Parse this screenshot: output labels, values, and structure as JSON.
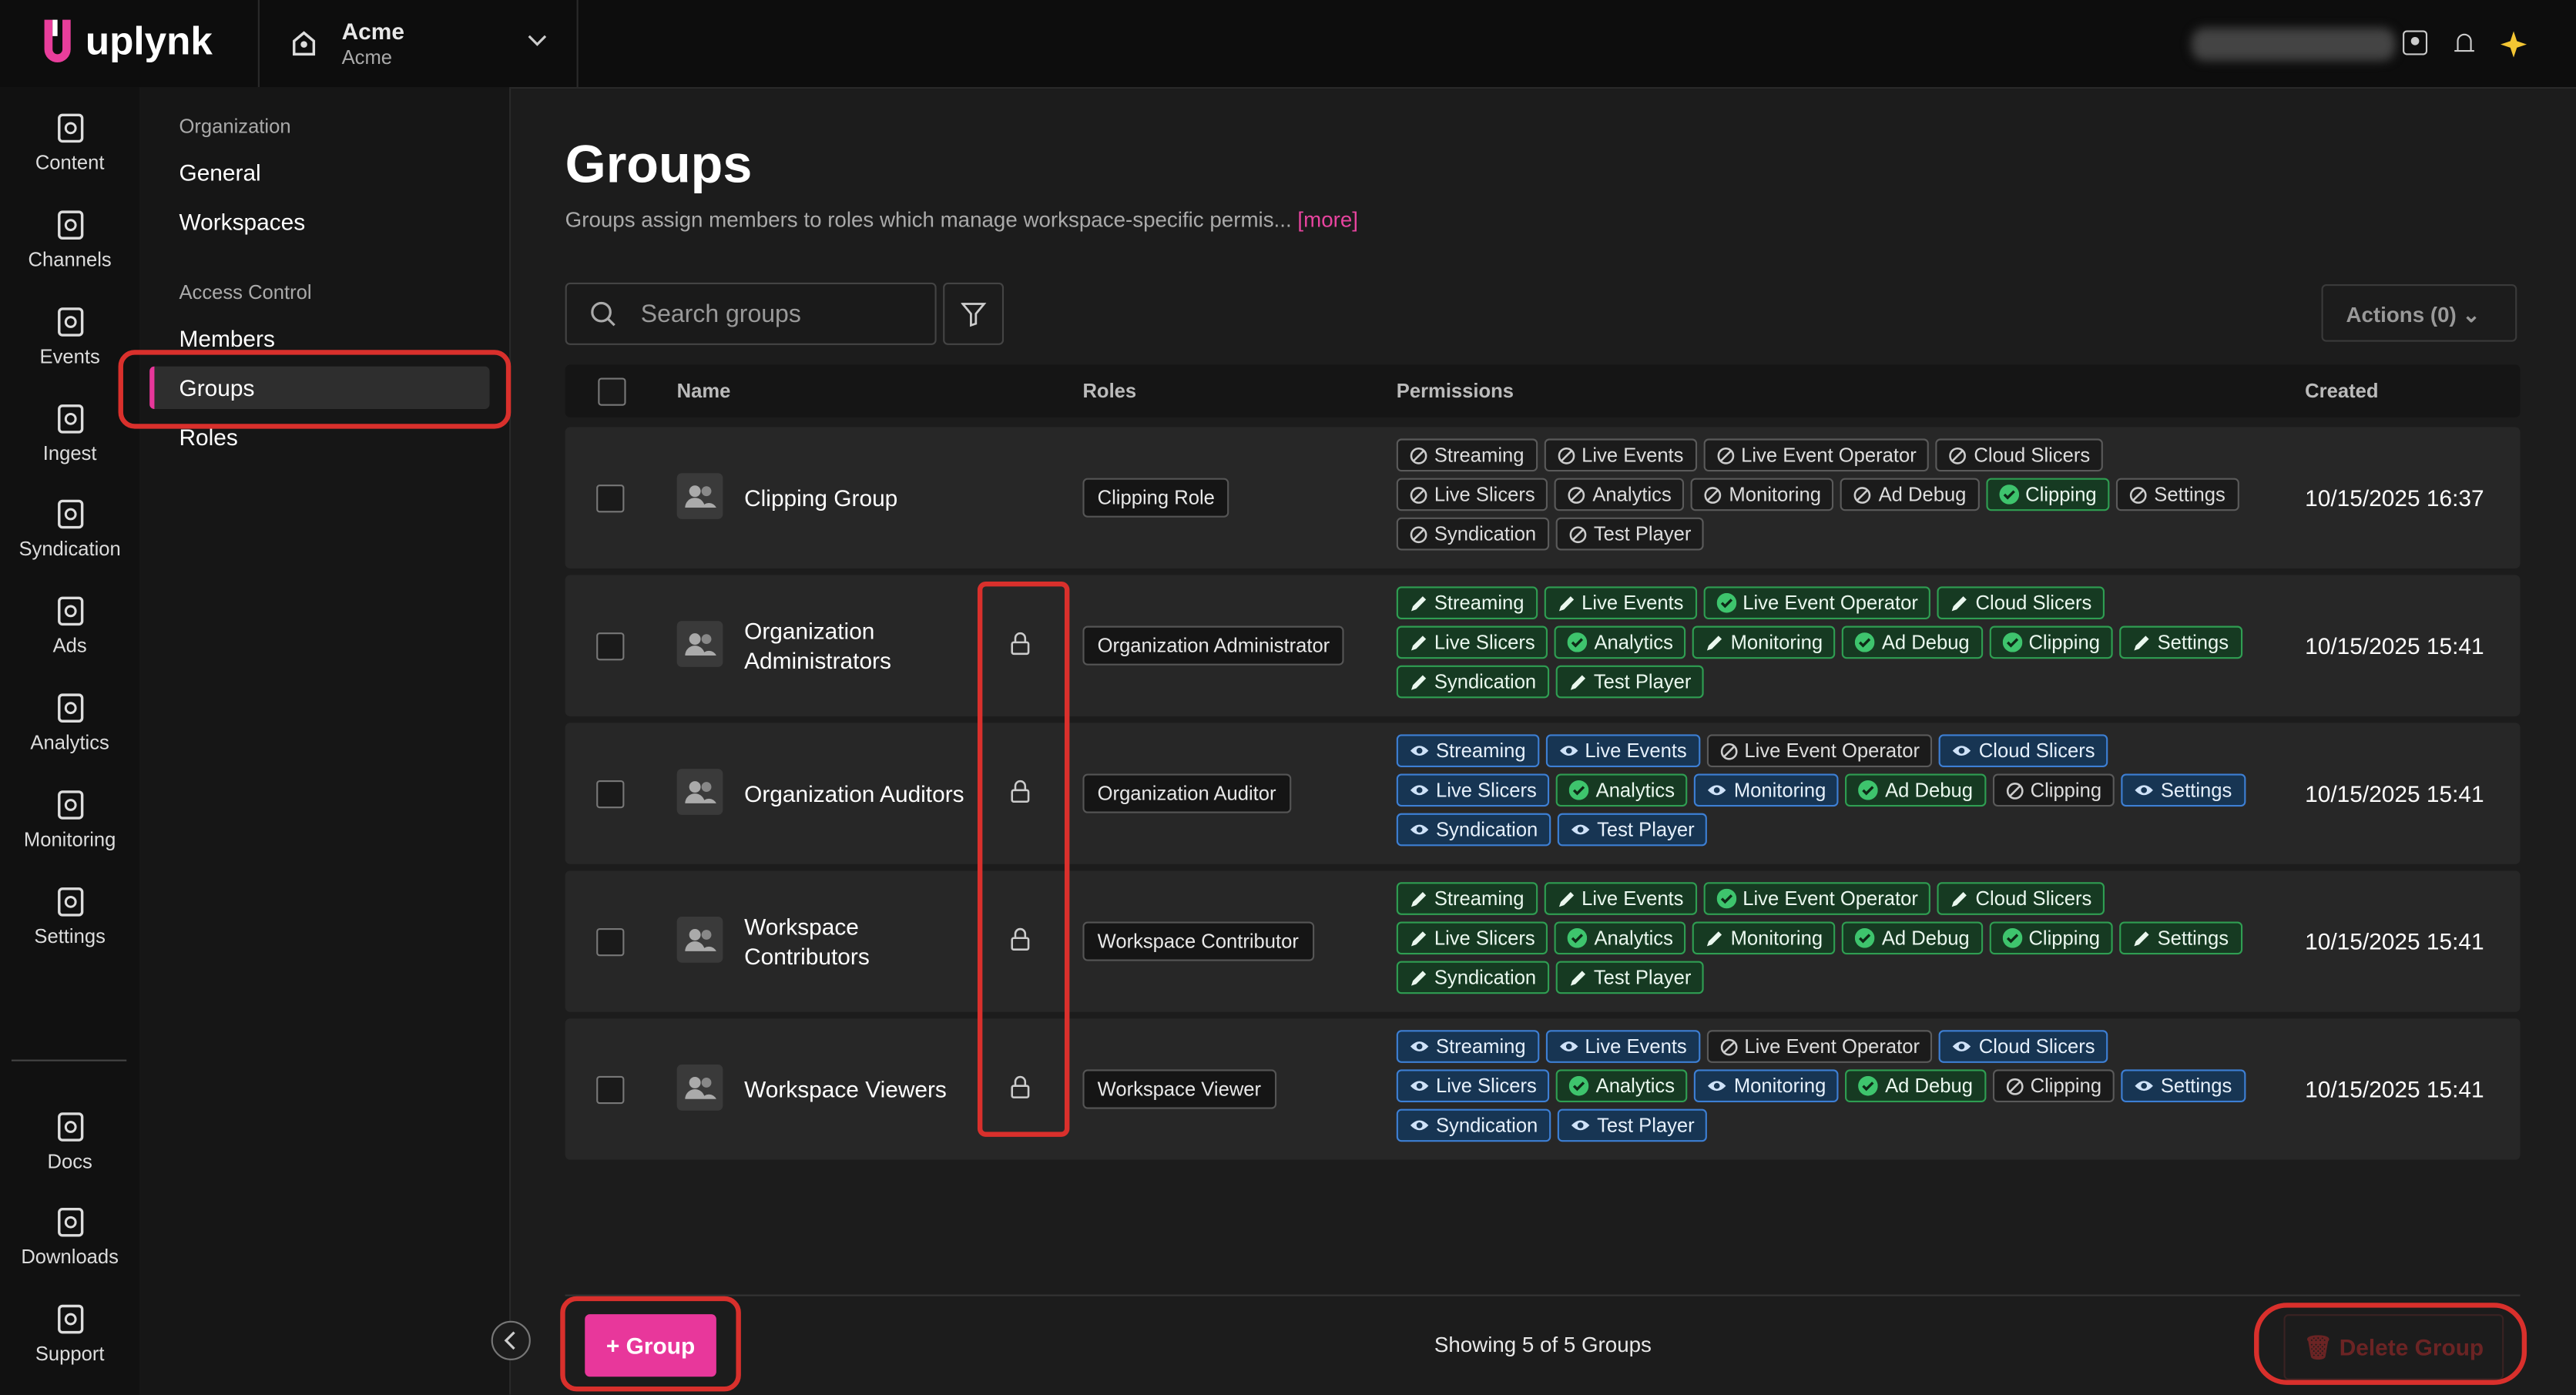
{
  "header": {
    "logo": "uplynk",
    "org_name": "Acme",
    "org_sub": "Acme"
  },
  "nav": {
    "items": [
      "Content",
      "Channels",
      "Events",
      "Ingest",
      "Syndication",
      "Ads",
      "Analytics",
      "Monitoring",
      "Settings"
    ],
    "bottom": [
      "Docs",
      "Downloads",
      "Support"
    ]
  },
  "sidebar": {
    "sections": [
      {
        "title": "Organization",
        "items": [
          "General",
          "Workspaces"
        ]
      },
      {
        "title": "Access Control",
        "items": [
          "Members",
          "Groups",
          "Roles"
        ]
      }
    ],
    "active": "Groups"
  },
  "page": {
    "title": "Groups",
    "description": "Groups assign members to roles which manage workspace-specific permis...",
    "more": "[more]",
    "search_placeholder": "Search groups",
    "actions": "Actions (0)"
  },
  "table": {
    "columns": [
      "Name",
      "Roles",
      "Permissions",
      "Created"
    ],
    "permission_names": [
      "Streaming",
      "Live Events",
      "Live Event Operator",
      "Cloud Slicers",
      "Live Slicers",
      "Analytics",
      "Monitoring",
      "Ad Debug",
      "Clipping",
      "Settings",
      "Syndication",
      "Test Player"
    ],
    "rows": [
      {
        "name": "Clipping Group",
        "role": "Clipping Role",
        "locked": false,
        "created": "10/15/2025 16:37",
        "permissions": [
          "none",
          "none",
          "none",
          "none",
          "none",
          "none",
          "none",
          "none",
          "full",
          "none",
          "none",
          "none"
        ]
      },
      {
        "name": "Organization Administrators",
        "role": "Organization Administrator",
        "locked": true,
        "created": "10/15/2025 15:41",
        "permissions": [
          "edit",
          "edit",
          "full",
          "edit",
          "edit",
          "full",
          "edit",
          "full",
          "full",
          "edit",
          "edit",
          "edit"
        ]
      },
      {
        "name": "Organization Auditors",
        "role": "Organization Auditor",
        "locked": true,
        "created": "10/15/2025 15:41",
        "permissions": [
          "view",
          "view",
          "none",
          "view",
          "view",
          "full",
          "view",
          "full",
          "none",
          "view",
          "view",
          "view"
        ]
      },
      {
        "name": "Workspace Contributors",
        "role": "Workspace Contributor",
        "locked": true,
        "created": "10/15/2025 15:41",
        "permissions": [
          "edit",
          "edit",
          "full",
          "edit",
          "edit",
          "full",
          "edit",
          "full",
          "full",
          "edit",
          "edit",
          "edit"
        ]
      },
      {
        "name": "Workspace Viewers",
        "role": "Workspace Viewer",
        "locked": true,
        "created": "10/15/2025 15:41",
        "permissions": [
          "view",
          "view",
          "none",
          "view",
          "view",
          "full",
          "view",
          "full",
          "none",
          "view",
          "view",
          "view"
        ]
      }
    ]
  },
  "footer": {
    "add": "+ Group",
    "showing": "Showing 5 of 5 Groups",
    "delete": "Delete Group"
  }
}
